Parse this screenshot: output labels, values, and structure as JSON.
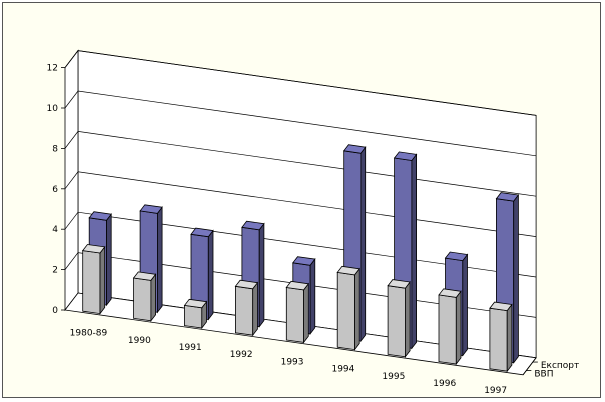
{
  "chart_data": {
    "type": "bar",
    "style": "3d-clustered-depth",
    "title": "",
    "xlabel": "",
    "ylabel": "",
    "ylim": [
      0,
      12
    ],
    "yticks": [
      0,
      2,
      4,
      6,
      8,
      10,
      12
    ],
    "grid": true,
    "legend_placement": "right, along depth axis",
    "categories": [
      "1980-89",
      "1990",
      "1991",
      "1992",
      "1993",
      "1994",
      "1995",
      "1996",
      "1997"
    ],
    "series": [
      {
        "name": "ВВП",
        "color": "#c4c4c4",
        "values": [
          3.0,
          2.0,
          1.0,
          2.3,
          2.6,
          3.7,
          3.4,
          3.3,
          3.0
        ]
      },
      {
        "name": "Експорт",
        "color": "#6a6aaa",
        "values": [
          4.2,
          4.9,
          4.1,
          4.8,
          3.4,
          9.3,
          9.3,
          4.7,
          8.0
        ]
      }
    ]
  }
}
